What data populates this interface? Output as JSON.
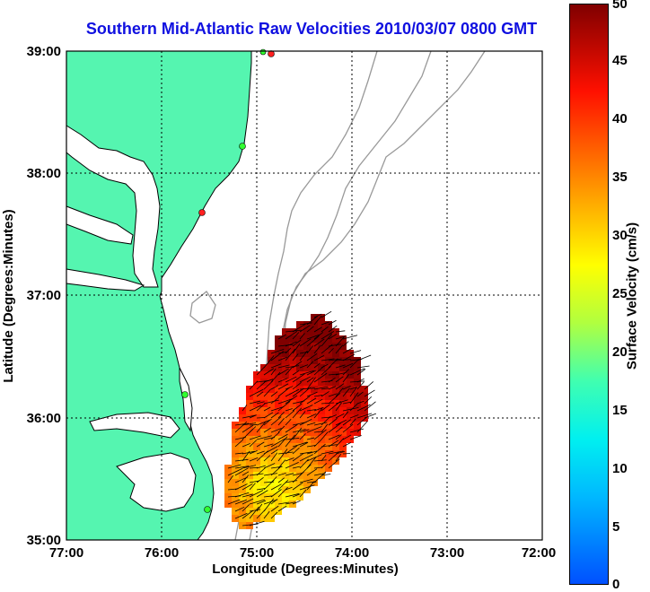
{
  "title": "Southern Mid-Atlantic Raw Velocities 2010/03/07 0800 GMT",
  "map": {
    "x_label": "Longitude (Degrees:Minutes)",
    "y_label": "Latitude (Degrees:Minutes)",
    "x_ticks": [
      "77:00",
      "76:00",
      "75:00",
      "74:00",
      "73:00",
      "72:00"
    ],
    "y_ticks": [
      "39:00",
      "38:00",
      "37:00",
      "36:00",
      "35:00"
    ],
    "lon_range": [
      -77,
      -72
    ],
    "lat_range": [
      35,
      39
    ],
    "grid": true,
    "land_color": "#55f5b0",
    "bathymetry_color": "#999999",
    "vector_color": "#000000"
  },
  "colorbar": {
    "label": "Surface Velocity (cm/s)",
    "ticks": [
      "50",
      "45",
      "40",
      "35",
      "30",
      "25",
      "20",
      "15",
      "10",
      "5",
      "0"
    ],
    "range": [
      0,
      50
    ],
    "colormap": "jet"
  }
}
